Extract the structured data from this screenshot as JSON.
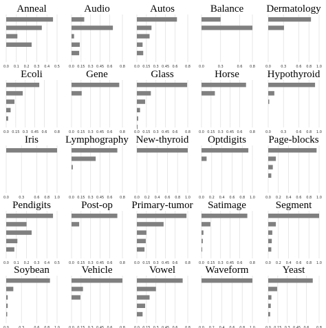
{
  "chart_data": [
    {
      "type": "bar",
      "orientation": "horizontal",
      "title": "Anneal",
      "xlim": [
        0,
        0.5
      ],
      "xticks": [
        "0.0",
        "0.1",
        "0.2",
        "0.3",
        "0.4",
        "0.5"
      ],
      "values": [
        0.46,
        0.35,
        0.11,
        0.25
      ]
    },
    {
      "type": "bar",
      "orientation": "horizontal",
      "title": "Audio",
      "xlim": [
        0,
        0.8
      ],
      "xticks": [
        "0.0",
        "0.15",
        "0.3",
        "0.45",
        "0.6",
        "0.8"
      ],
      "values": [
        0.2,
        0.65,
        0.04,
        0.13,
        0.12
      ]
    },
    {
      "type": "bar",
      "orientation": "horizontal",
      "title": "Autos",
      "xlim": [
        0,
        0.8
      ],
      "xticks": [
        "0.0",
        "0.15",
        "0.3",
        "0.45",
        "0.6",
        "0.8"
      ],
      "values": [
        0.63,
        0.23,
        0.2,
        0.09,
        0.1
      ]
    },
    {
      "type": "bar",
      "orientation": "horizontal",
      "title": "Balance",
      "xlim": [
        0,
        0.8
      ],
      "xticks": [
        "0.0",
        "0.3",
        "0.6",
        "0.8"
      ],
      "values": [
        0.3,
        0.8
      ]
    },
    {
      "type": "bar",
      "orientation": "horizontal",
      "title": "Dermatology",
      "xlim": [
        0,
        1.0
      ],
      "xticks": [
        "0.0",
        "0.3",
        "0.6",
        "0.8",
        "1.0"
      ],
      "values": [
        0.84,
        0.31
      ]
    },
    {
      "type": "bar",
      "orientation": "horizontal",
      "title": "Ecoli",
      "xlim": [
        0,
        0.8
      ],
      "xticks": [
        "0.0",
        "0.15",
        "0.3",
        "0.45",
        "0.6",
        "0.8"
      ],
      "values": [
        0.52,
        0.26,
        0.13,
        0.07,
        0.03
      ]
    },
    {
      "type": "bar",
      "orientation": "horizontal",
      "title": "Gene",
      "xlim": [
        0,
        0.8
      ],
      "xticks": [
        "0.0",
        "0.15",
        "0.3",
        "0.45",
        "0.6",
        "0.8"
      ],
      "values": [
        0.75,
        0.16
      ]
    },
    {
      "type": "bar",
      "orientation": "horizontal",
      "title": "Glass",
      "xlim": [
        0,
        0.8
      ],
      "xticks": [
        "0.0",
        "0.15",
        "0.3",
        "0.45",
        "0.6",
        "0.8"
      ],
      "values": [
        0.79,
        0.22,
        0.13,
        0.05,
        0.02,
        0.01
      ]
    },
    {
      "type": "bar",
      "orientation": "horizontal",
      "title": "Horse",
      "xlim": [
        0,
        0.8
      ],
      "xticks": [
        "0.0",
        "0.15",
        "0.3",
        "0.45",
        "0.6",
        "0.8"
      ],
      "values": [
        0.7,
        0.21
      ]
    },
    {
      "type": "bar",
      "orientation": "horizontal",
      "title": "Hypothyroid",
      "xlim": [
        0,
        1.0
      ],
      "xticks": [
        "0.0",
        "0.3",
        "0.6",
        "0.8",
        "1.0"
      ],
      "values": [
        0.92,
        0.12,
        0.02
      ]
    },
    {
      "type": "bar",
      "orientation": "horizontal",
      "title": "Iris",
      "xlim": [
        0,
        1.0
      ],
      "xticks": [
        "0.0",
        "0.3",
        "0.6",
        "0.8",
        "1.0"
      ],
      "values": [
        1.0
      ]
    },
    {
      "type": "bar",
      "orientation": "horizontal",
      "title": "Lymphography",
      "xlim": [
        0,
        0.8
      ],
      "xticks": [
        "0.0",
        "0.15",
        "0.3",
        "0.45",
        "0.6",
        "0.8"
      ],
      "values": [
        0.72,
        0.38,
        0.02
      ]
    },
    {
      "type": "bar",
      "orientation": "horizontal",
      "title": "New-thyroid",
      "xlim": [
        0,
        1.0
      ],
      "xticks": [
        "0.0",
        "0.2",
        "0.4",
        "0.6",
        "0.8",
        "1.0"
      ],
      "values": [
        1.0
      ]
    },
    {
      "type": "bar",
      "orientation": "horizontal",
      "title": "Optdigits",
      "xlim": [
        0,
        1.0
      ],
      "xticks": [
        "0.0",
        "0.2",
        "0.4",
        "0.6",
        "0.8",
        "1.0"
      ],
      "values": [
        0.92,
        0.1
      ]
    },
    {
      "type": "bar",
      "orientation": "horizontal",
      "title": "Page-blocks",
      "xlim": [
        0,
        1.0
      ],
      "xticks": [
        "0.0",
        "0.2",
        "0.4",
        "0.6",
        "0.8",
        "1.0"
      ],
      "values": [
        0.95,
        0.15,
        0.09,
        0.06
      ]
    },
    {
      "type": "bar",
      "orientation": "horizontal",
      "title": "Pendigits",
      "xlim": [
        0,
        0.5
      ],
      "xticks": [
        "0.0",
        "0.1",
        "0.2",
        "0.3",
        "0.4",
        "0.5"
      ],
      "values": [
        0.46,
        0.2,
        0.25,
        0.11,
        0.08
      ]
    },
    {
      "type": "bar",
      "orientation": "horizontal",
      "title": "Post-op",
      "xlim": [
        0,
        0.8
      ],
      "xticks": [
        "0.0",
        "0.15",
        "0.3",
        "0.45",
        "0.6",
        "0.8"
      ],
      "values": [
        0.72,
        0.12
      ]
    },
    {
      "type": "bar",
      "orientation": "horizontal",
      "title": "Primary-tumor",
      "xlim": [
        0,
        0.8
      ],
      "xticks": [
        "0.0",
        "0.15",
        "0.3",
        "0.45",
        "0.6",
        "0.8"
      ],
      "values": [
        0.78,
        0.42,
        0.15,
        0.14,
        0.12
      ]
    },
    {
      "type": "bar",
      "orientation": "horizontal",
      "title": "Satimage",
      "xlim": [
        0,
        0.8
      ],
      "xticks": [
        "0.0",
        "0.15",
        "0.3",
        "0.45",
        "0.6",
        "0.8"
      ],
      "values": [
        0.72,
        0.14,
        0.03,
        0.02,
        0.01
      ]
    },
    {
      "type": "bar",
      "orientation": "horizontal",
      "title": "Segment",
      "xlim": [
        0,
        1.0
      ],
      "xticks": [
        "0.0",
        "0.2",
        "0.4",
        "0.6",
        "0.8",
        "1.0"
      ],
      "values": [
        1.0,
        0.15,
        0.08,
        0.07,
        0.06
      ]
    },
    {
      "type": "bar",
      "orientation": "horizontal",
      "title": "Soybean",
      "xlim": [
        0,
        1.0
      ],
      "xticks": [
        "0.0",
        "0.3",
        "0.6",
        "0.8",
        "1.0"
      ],
      "values": [
        0.86,
        0.14,
        0.03,
        0.03,
        0.02
      ]
    },
    {
      "type": "bar",
      "orientation": "horizontal",
      "title": "Vehicle",
      "xlim": [
        0,
        0.8
      ],
      "xticks": [
        "0.0",
        "0.15",
        "0.3",
        "0.45",
        "0.6",
        "0.8"
      ],
      "values": [
        0.8,
        0.18,
        0.14
      ]
    },
    {
      "type": "bar",
      "orientation": "horizontal",
      "title": "Vowel",
      "xlim": [
        0,
        0.8
      ],
      "xticks": [
        "0.0",
        "0.15",
        "0.3",
        "0.45",
        "0.6",
        "0.8"
      ],
      "values": [
        0.72,
        0.3,
        0.2,
        0.13,
        0.09
      ]
    },
    {
      "type": "bar",
      "orientation": "horizontal",
      "title": "Waveform",
      "xlim": [
        0,
        1.0
      ],
      "xticks": [
        "0.0",
        "0.2",
        "0.4",
        "0.6",
        "0.8",
        "1.0"
      ],
      "values": [
        1.0
      ]
    },
    {
      "type": "bar",
      "orientation": "horizontal",
      "title": "Yeast",
      "xlim": [
        0,
        0.8
      ],
      "xticks": [
        "0.0",
        "0.15",
        "0.3",
        "0.45",
        "0.6",
        "0.8"
      ],
      "values": [
        0.7,
        0.14,
        0.05,
        0.04,
        0.03
      ]
    }
  ]
}
